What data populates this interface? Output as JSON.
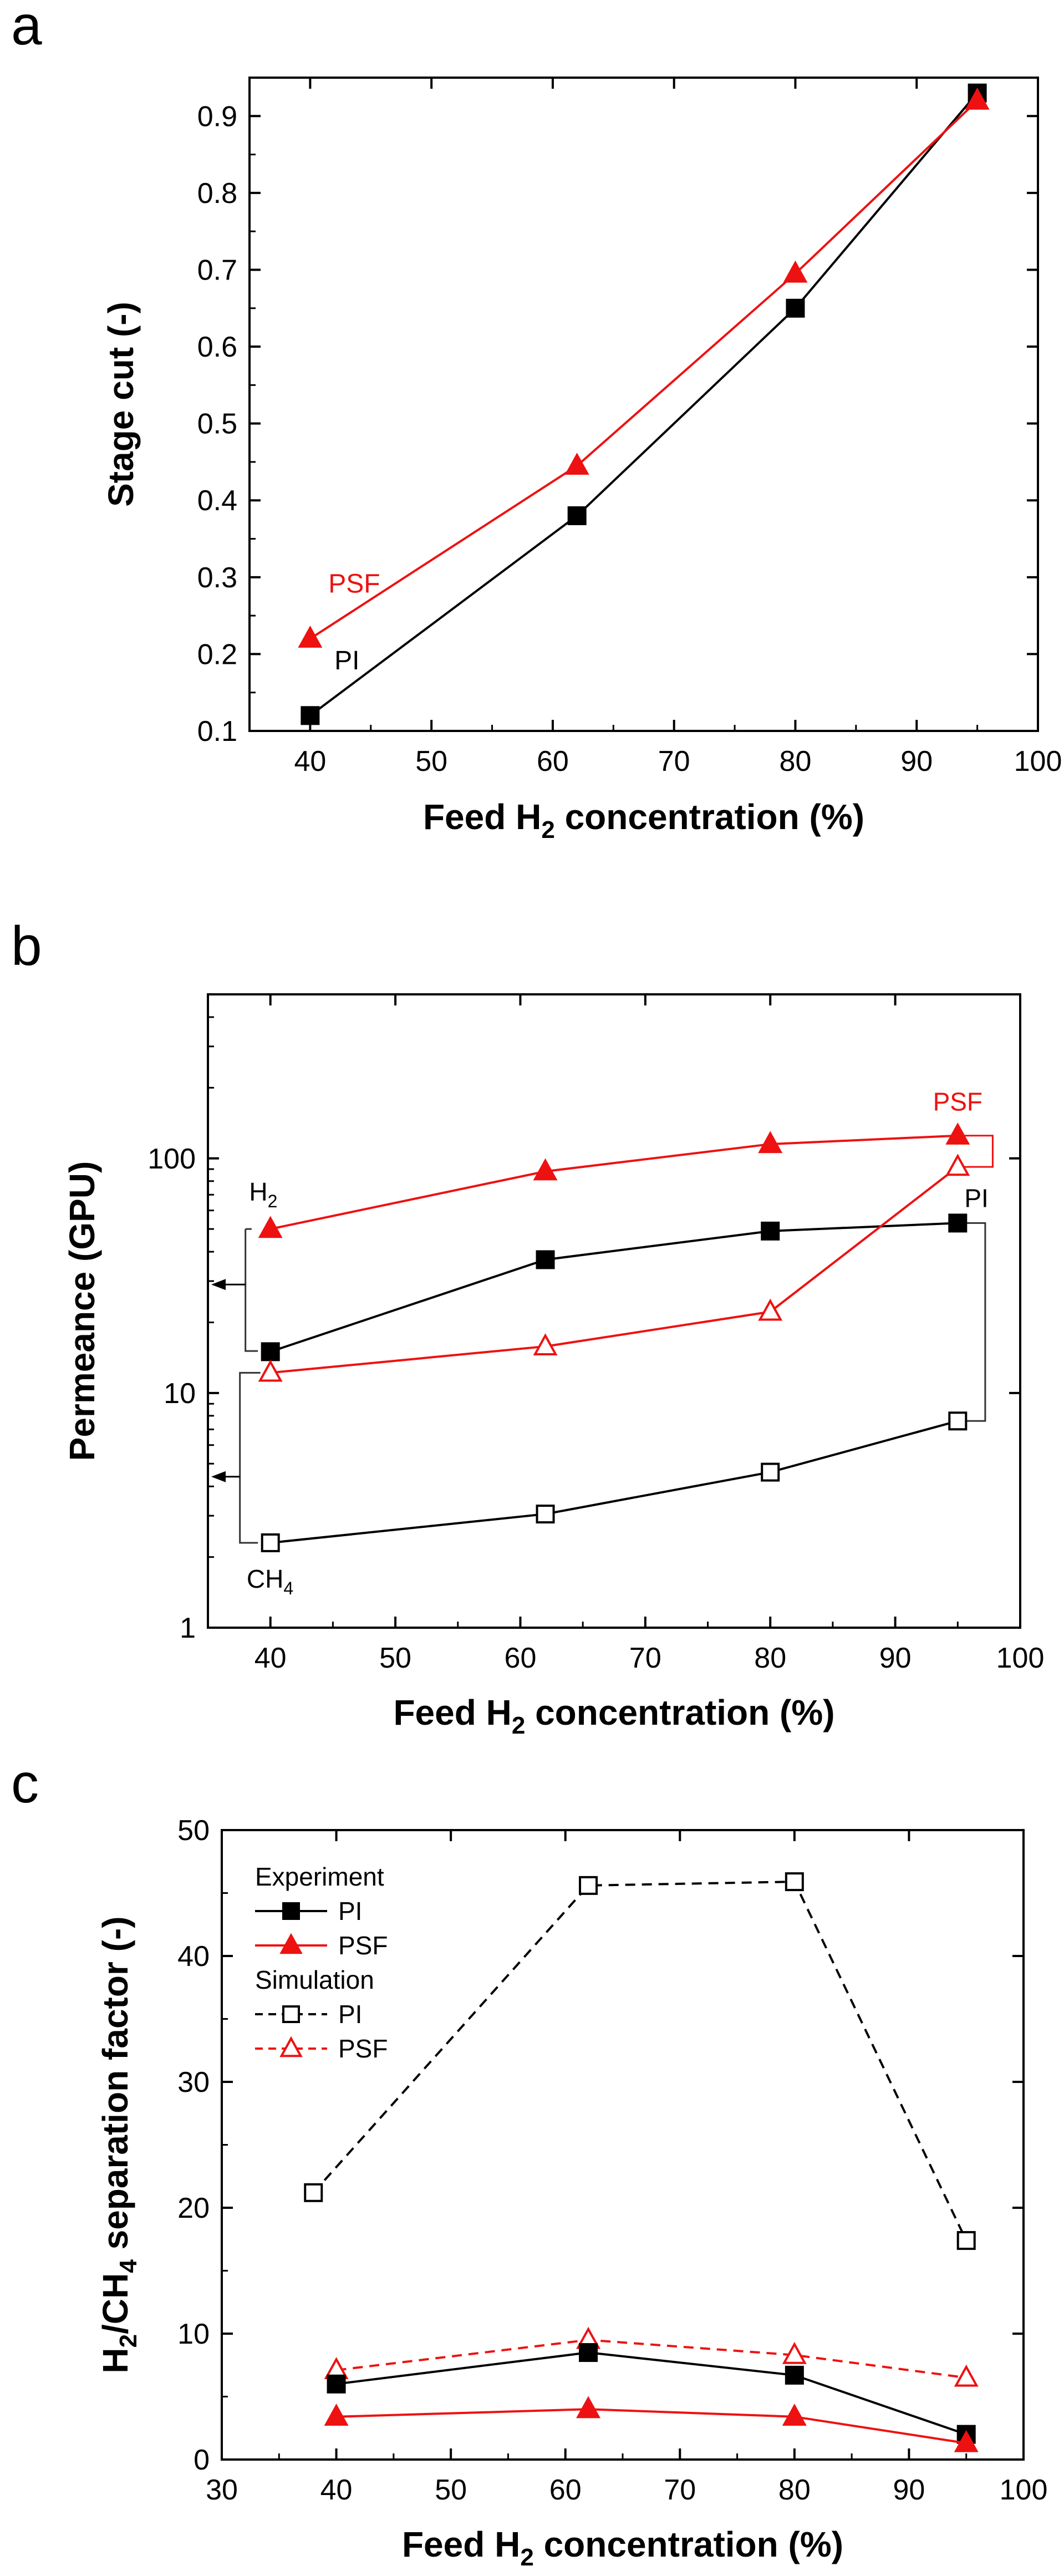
{
  "panel_labels": [
    "a",
    "b",
    "c"
  ],
  "chart_data": [
    {
      "panel": "a",
      "type": "line",
      "title": "",
      "xlabel_main": "Feed H",
      "xlabel_sub": "2",
      "xlabel_tail": " concentration (%)",
      "ylabel": "Stage cut (-)",
      "xlim": [
        35,
        100
      ],
      "ylim": [
        0.1,
        0.95
      ],
      "yscale": "linear",
      "xticks": [
        40,
        50,
        60,
        70,
        80,
        90,
        100
      ],
      "yticks": [
        0.1,
        0.2,
        0.3,
        0.4,
        0.5,
        0.6,
        0.7,
        0.8,
        0.9
      ],
      "ytick_labels": [
        "0.1",
        "0.2",
        "0.3",
        "0.4",
        "0.5",
        "0.6",
        "0.7",
        "0.8",
        "0.9"
      ],
      "series": [
        {
          "name": "PI",
          "label": "PI",
          "marker": "square",
          "filled": true,
          "color": "#000000",
          "dash": false,
          "x": [
            40,
            62,
            80,
            95
          ],
          "y": [
            0.12,
            0.38,
            0.65,
            0.93
          ]
        },
        {
          "name": "PSF",
          "label": "PSF",
          "marker": "triangle",
          "filled": true,
          "color": "#ee1111",
          "dash": false,
          "x": [
            40,
            62,
            80,
            95
          ],
          "y": [
            0.22,
            0.445,
            0.695,
            0.92
          ]
        }
      ],
      "annotations": [
        {
          "text": "PSF",
          "x": 41.5,
          "y": 0.28,
          "color": "#ee1111"
        },
        {
          "text": "PI",
          "x": 42,
          "y": 0.18,
          "color": "#000000"
        }
      ]
    },
    {
      "panel": "b",
      "type": "line",
      "title": "",
      "xlabel_main": "Feed H",
      "xlabel_sub": "2",
      "xlabel_tail": " concentration (%)",
      "ylabel": "Permeance (GPU)",
      "xlim": [
        35,
        100
      ],
      "ylim": [
        1,
        500
      ],
      "yscale": "log",
      "xticks": [
        40,
        50,
        60,
        70,
        80,
        90,
        100
      ],
      "yticks": [
        1,
        10,
        100
      ],
      "ytick_labels": [
        "1",
        "10",
        "100"
      ],
      "series": [
        {
          "name": "PSF H2",
          "marker": "triangle",
          "filled": true,
          "color": "#ee1111",
          "dash": false,
          "x": [
            40,
            62,
            80,
            95
          ],
          "y": [
            50,
            88,
            115,
            125
          ]
        },
        {
          "name": "PI H2",
          "marker": "square",
          "filled": true,
          "color": "#000000",
          "dash": false,
          "x": [
            40,
            62,
            80,
            95
          ],
          "y": [
            15,
            37,
            49,
            53
          ]
        },
        {
          "name": "PSF CH4",
          "marker": "triangle",
          "filled": false,
          "color": "#ee1111",
          "dash": false,
          "x": [
            40,
            62,
            80,
            95
          ],
          "y": [
            12.2,
            15.8,
            22.2,
            92
          ]
        },
        {
          "name": "PI CH4",
          "marker": "square",
          "filled": false,
          "color": "#000000",
          "dash": false,
          "x": [
            40,
            62,
            80,
            95
          ],
          "y": [
            2.3,
            3.05,
            4.6,
            7.6
          ]
        }
      ],
      "annotations": [
        {
          "text": "PSF",
          "color": "#ee1111"
        },
        {
          "text": "PI",
          "color": "#000000"
        },
        {
          "text": "H",
          "sub": "2",
          "color": "#000000"
        },
        {
          "text": "CH",
          "sub": "4",
          "color": "#000000"
        }
      ]
    },
    {
      "panel": "c",
      "type": "line",
      "title": "",
      "xlabel_main": "Feed H",
      "xlabel_sub": "2",
      "xlabel_tail": " concentration (%)",
      "ylabel_parts": [
        "H",
        "2",
        "/CH",
        "4",
        " separation factor (-)"
      ],
      "xlim": [
        30,
        100
      ],
      "ylim": [
        0,
        50
      ],
      "yscale": "linear",
      "xticks": [
        30,
        40,
        50,
        60,
        70,
        80,
        90,
        100
      ],
      "yticks": [
        0,
        10,
        20,
        30,
        40,
        50
      ],
      "ytick_labels": [
        "0",
        "10",
        "20",
        "30",
        "40",
        "50"
      ],
      "series": [
        {
          "name": "Simulation PI",
          "marker": "square",
          "filled": false,
          "color": "#000000",
          "dash": true,
          "x": [
            38,
            62,
            80,
            95
          ],
          "y": [
            21.2,
            45.6,
            45.9,
            17.4
          ]
        },
        {
          "name": "Simulation PSF",
          "marker": "triangle",
          "filled": false,
          "color": "#ee1111",
          "dash": true,
          "x": [
            40,
            62,
            80,
            95
          ],
          "y": [
            7.1,
            9.5,
            8.3,
            6.5
          ]
        },
        {
          "name": "Experiment PI",
          "marker": "square",
          "filled": true,
          "color": "#000000",
          "dash": false,
          "x": [
            40,
            62,
            80,
            95
          ],
          "y": [
            6.0,
            8.5,
            6.7,
            2.0
          ]
        },
        {
          "name": "Experiment PSF",
          "marker": "triangle",
          "filled": true,
          "color": "#ee1111",
          "dash": false,
          "x": [
            40,
            62,
            80,
            95
          ],
          "y": [
            3.4,
            4.0,
            3.4,
            1.3
          ]
        }
      ],
      "legend": {
        "placement": "top-left",
        "groups": [
          {
            "title": "Experiment",
            "entries": [
              {
                "label": "PI",
                "marker": "square",
                "filled": true,
                "color": "#000000",
                "dash": false
              },
              {
                "label": "PSF",
                "marker": "triangle",
                "filled": true,
                "color": "#ee1111",
                "dash": false
              }
            ]
          },
          {
            "title": "Simulation",
            "entries": [
              {
                "label": "PI",
                "marker": "square",
                "filled": false,
                "color": "#000000",
                "dash": true
              },
              {
                "label": "PSF",
                "marker": "triangle",
                "filled": false,
                "color": "#ee1111",
                "dash": true
              }
            ]
          }
        ]
      }
    }
  ]
}
